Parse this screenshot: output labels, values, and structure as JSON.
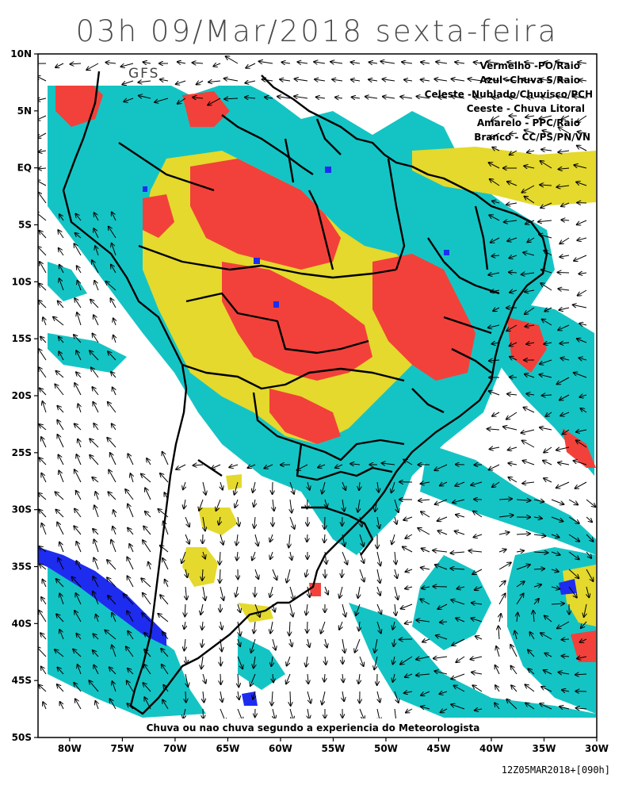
{
  "title": "03h 09/Mar/2018 sexta-feira",
  "model": "GFS",
  "legend": [
    "Vermelho -PO/Raio",
    "Azul -Chuva S/Raio",
    "Celeste -Nublado/Chuvisco/PCH",
    "Ceeste - Chuva Litoral",
    "Amarelo - PPC/Raio",
    "Branco - CC/PS/PN/VN"
  ],
  "footer_note": "Chuva ou nao chuva segundo a experiencia do Meteorologista",
  "run_stamp": "12Z05MAR2018+[090h]",
  "lat_labels": [
    "10N",
    "5N",
    "EQ",
    "5S",
    "10S",
    "15S",
    "20S",
    "25S",
    "30S",
    "35S",
    "40S",
    "45S",
    "50S"
  ],
  "lon_labels": [
    "80W",
    "75W",
    "70W",
    "65W",
    "60W",
    "55W",
    "50W",
    "45W",
    "40W",
    "35W",
    "30W"
  ],
  "map_extent": {
    "lon": [
      -83,
      -30
    ],
    "lat": [
      -50,
      10
    ]
  },
  "colors": {
    "vermelho": "#f2413a",
    "azul": "#1e2cf0",
    "celeste": "#14c4c4",
    "amarelo": "#e4d92c",
    "branco": "#ffffff",
    "borders": "#000000",
    "arrows": "#000000"
  }
}
